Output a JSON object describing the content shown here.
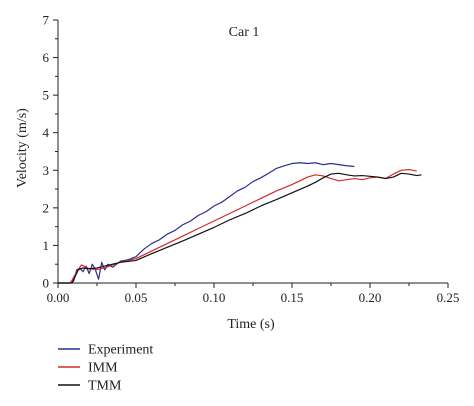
{
  "chart_data": {
    "type": "line",
    "annotation": "Car 1",
    "xlabel": "Time (s)",
    "ylabel": "Velocity (m/s)",
    "xlim": [
      0,
      0.25
    ],
    "ylim": [
      0,
      7
    ],
    "xticks": [
      "0.00",
      "0.05",
      "0.10",
      "0.15",
      "0.20",
      "0.25"
    ],
    "yticks": [
      "0",
      "1",
      "2",
      "3",
      "4",
      "5",
      "6",
      "7"
    ],
    "grid": false,
    "legend": "bottom-left",
    "series": [
      {
        "name": "Experiment",
        "color": "#2a2f8f",
        "points": [
          [
            0.0,
            0.0
          ],
          [
            0.007,
            0.0
          ],
          [
            0.01,
            0.05
          ],
          [
            0.012,
            0.35
          ],
          [
            0.014,
            0.4
          ],
          [
            0.016,
            0.3
          ],
          [
            0.018,
            0.45
          ],
          [
            0.02,
            0.25
          ],
          [
            0.022,
            0.5
          ],
          [
            0.024,
            0.35
          ],
          [
            0.026,
            0.1
          ],
          [
            0.028,
            0.55
          ],
          [
            0.03,
            0.35
          ],
          [
            0.032,
            0.5
          ],
          [
            0.035,
            0.42
          ],
          [
            0.04,
            0.58
          ],
          [
            0.045,
            0.62
          ],
          [
            0.05,
            0.7
          ],
          [
            0.055,
            0.9
          ],
          [
            0.06,
            1.05
          ],
          [
            0.065,
            1.15
          ],
          [
            0.07,
            1.3
          ],
          [
            0.075,
            1.4
          ],
          [
            0.08,
            1.55
          ],
          [
            0.085,
            1.65
          ],
          [
            0.09,
            1.8
          ],
          [
            0.095,
            1.9
          ],
          [
            0.1,
            2.05
          ],
          [
            0.105,
            2.15
          ],
          [
            0.11,
            2.3
          ],
          [
            0.115,
            2.45
          ],
          [
            0.12,
            2.55
          ],
          [
            0.125,
            2.7
          ],
          [
            0.13,
            2.8
          ],
          [
            0.135,
            2.92
          ],
          [
            0.14,
            3.05
          ],
          [
            0.145,
            3.12
          ],
          [
            0.15,
            3.18
          ],
          [
            0.155,
            3.2
          ],
          [
            0.16,
            3.18
          ],
          [
            0.165,
            3.2
          ],
          [
            0.17,
            3.15
          ],
          [
            0.175,
            3.18
          ],
          [
            0.18,
            3.15
          ],
          [
            0.185,
            3.12
          ],
          [
            0.19,
            3.1
          ]
        ]
      },
      {
        "name": "IMM",
        "color": "#d42a2a",
        "points": [
          [
            0.0,
            0.0
          ],
          [
            0.008,
            0.0
          ],
          [
            0.012,
            0.3
          ],
          [
            0.015,
            0.48
          ],
          [
            0.018,
            0.42
          ],
          [
            0.02,
            0.38
          ],
          [
            0.025,
            0.36
          ],
          [
            0.03,
            0.4
          ],
          [
            0.035,
            0.48
          ],
          [
            0.04,
            0.55
          ],
          [
            0.05,
            0.65
          ],
          [
            0.06,
            0.85
          ],
          [
            0.07,
            1.05
          ],
          [
            0.08,
            1.25
          ],
          [
            0.09,
            1.45
          ],
          [
            0.1,
            1.65
          ],
          [
            0.11,
            1.85
          ],
          [
            0.12,
            2.05
          ],
          [
            0.13,
            2.25
          ],
          [
            0.14,
            2.45
          ],
          [
            0.15,
            2.62
          ],
          [
            0.155,
            2.72
          ],
          [
            0.16,
            2.82
          ],
          [
            0.165,
            2.88
          ],
          [
            0.17,
            2.85
          ],
          [
            0.175,
            2.78
          ],
          [
            0.18,
            2.72
          ],
          [
            0.185,
            2.75
          ],
          [
            0.19,
            2.78
          ],
          [
            0.195,
            2.75
          ],
          [
            0.2,
            2.8
          ],
          [
            0.205,
            2.82
          ],
          [
            0.21,
            2.78
          ],
          [
            0.215,
            2.9
          ],
          [
            0.22,
            3.0
          ],
          [
            0.225,
            3.02
          ],
          [
            0.23,
            2.98
          ]
        ]
      },
      {
        "name": "TMM",
        "color": "#111111",
        "points": [
          [
            0.0,
            0.0
          ],
          [
            0.009,
            0.0
          ],
          [
            0.013,
            0.35
          ],
          [
            0.016,
            0.4
          ],
          [
            0.02,
            0.38
          ],
          [
            0.025,
            0.4
          ],
          [
            0.03,
            0.45
          ],
          [
            0.035,
            0.5
          ],
          [
            0.04,
            0.55
          ],
          [
            0.05,
            0.6
          ],
          [
            0.06,
            0.78
          ],
          [
            0.07,
            0.95
          ],
          [
            0.08,
            1.12
          ],
          [
            0.09,
            1.3
          ],
          [
            0.1,
            1.48
          ],
          [
            0.11,
            1.68
          ],
          [
            0.12,
            1.85
          ],
          [
            0.13,
            2.05
          ],
          [
            0.14,
            2.22
          ],
          [
            0.15,
            2.4
          ],
          [
            0.16,
            2.58
          ],
          [
            0.165,
            2.68
          ],
          [
            0.17,
            2.8
          ],
          [
            0.175,
            2.9
          ],
          [
            0.18,
            2.92
          ],
          [
            0.185,
            2.88
          ],
          [
            0.19,
            2.85
          ],
          [
            0.195,
            2.86
          ],
          [
            0.2,
            2.84
          ],
          [
            0.205,
            2.82
          ],
          [
            0.21,
            2.78
          ],
          [
            0.215,
            2.82
          ],
          [
            0.22,
            2.92
          ],
          [
            0.225,
            2.9
          ],
          [
            0.23,
            2.86
          ],
          [
            0.233,
            2.88
          ]
        ]
      }
    ]
  }
}
